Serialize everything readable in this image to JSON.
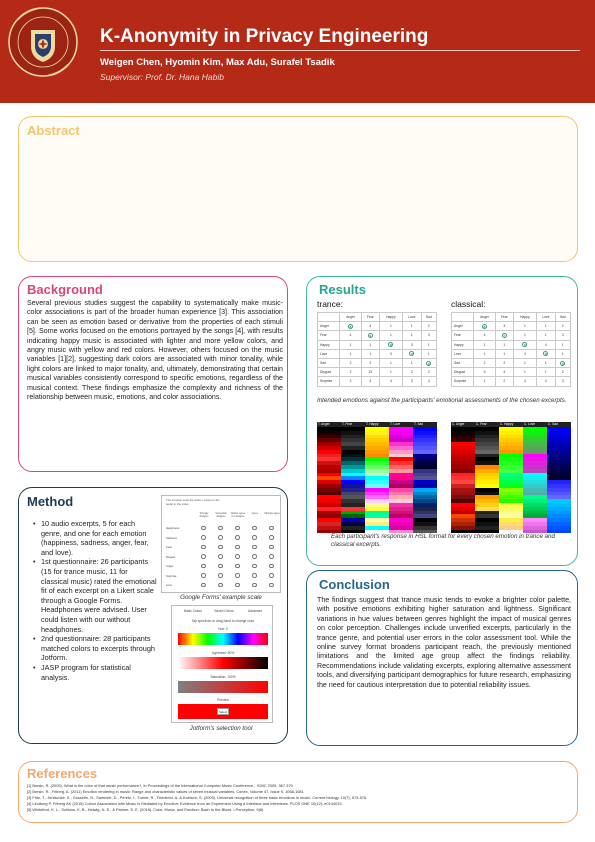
{
  "header": {
    "seal_text": "Kadir Mellon University",
    "title": "K-Anonymity in Privacy Engineering",
    "authors": "Weigen Chen, Hyomin Kim, Max Adu, Surafel Tsadik",
    "supervisor": "Supervisor: Prof. Dr. Hana Habib",
    "colors": {
      "header_bg": "#b52a17"
    }
  },
  "abstract": {
    "title": "Abstract"
  },
  "background": {
    "title": "Background",
    "text": "Several previous studies suggest the capability to systematically make music-color associations is part of the broader human experience [3]. This association can be seen as emotion based or derivative from the properties of each stimuli [5]. Some works focused on the emotions portrayed by the songs [4], with results indicating happy music is associated with lighter and more yellow colors, and angry music with yellow and red colors. However, others focused on the music variables [1][2], suggesting dark colors are associated with minor tonality, while light colors are linked to major tonality, and, ultimately, demonstrating that certain musical variables consistently correspond to specific emotions, regardless of the musical context. These findings emphasize the complexity and richness of the relationship between music, emotions, and color associations."
  },
  "method": {
    "title": "Method",
    "bullets": [
      "10 audio excerpts, 5 for each genre, and one for each emotion (happiness, sadness, anger, fear, and love).",
      "1st questionnaire: 26 participants (15 for trance music, 11 for classical music) rated the emotional fit of each excerpt on a Likert scale through a Google Forms. Headphones were advised. User could listen with our without headphones.",
      "2nd questionnaire: 28 participants matched colors to excerpts through Jotform.",
      "JASP program for statistical analysis."
    ],
    "forms_panel": {
      "prompt": "The emotion suits the audio / Listen to the audio in the video",
      "columns": [
        "Strongly disagree",
        "Somewhat disagree",
        "Neither agree nor disagree",
        "Agree",
        "Strongly agree"
      ],
      "rows": [
        "Happiness",
        "Sadness",
        "Fear",
        "Disgust",
        "Anger",
        "Surprise",
        "Love"
      ],
      "caption": "Google Forms' example scale"
    },
    "jotform_panel": {
      "tabs": [
        "Basic Colors",
        "Saved Colors",
        "Advanced"
      ],
      "instruction": "Tap spectrum or drag band to change color",
      "hue_label": "Hue: 0",
      "lightness_label": "Lightness: 50%",
      "saturation_label": "Saturation: 100%",
      "preview_label": "Preview",
      "select_label": "Select",
      "caption": "Jotform's selection tool"
    }
  },
  "results": {
    "title": "Results",
    "trance_label": "trance:",
    "classical_label": "classical:",
    "table_columns": [
      "",
      "Anger",
      "Fear",
      "Happy",
      "Love",
      "Sad"
    ],
    "trance_rows": [
      {
        "label": "Anger",
        "cells": [
          "8",
          "4",
          "1",
          "1",
          "2"
        ],
        "mark": 0
      },
      {
        "label": "Fear",
        "cells": [
          "4",
          "9",
          "1",
          "1",
          "3"
        ],
        "mark": 1
      },
      {
        "label": "Happy",
        "cells": [
          "1",
          "1",
          "8",
          "3",
          "1"
        ],
        "mark": 2
      },
      {
        "label": "Love",
        "cells": [
          "1",
          "1",
          "3",
          "9",
          "1"
        ],
        "mark": 3
      },
      {
        "label": "Sad",
        "cells": [
          "2",
          "2",
          "1",
          "1",
          "9"
        ],
        "mark": 4
      },
      {
        "label": "Disgust",
        "cells": [
          "2",
          "13",
          "1",
          "2",
          "2"
        ],
        "mark": -1
      },
      {
        "label": "Surprise",
        "cells": [
          "2",
          "4",
          "4",
          "3",
          "4"
        ],
        "mark": -1
      }
    ],
    "classical_rows": [
      {
        "label": "Anger",
        "cells": [
          "8",
          "3",
          "1",
          "1",
          "2"
        ],
        "mark": 0
      },
      {
        "label": "Fear",
        "cells": [
          "4",
          "7",
          "1",
          "1",
          "3"
        ],
        "mark": 1
      },
      {
        "label": "Happy",
        "cells": [
          "1",
          "1",
          "9",
          "4",
          "1"
        ],
        "mark": 2
      },
      {
        "label": "Love",
        "cells": [
          "1",
          "1",
          "4",
          "8",
          "1"
        ],
        "mark": 3
      },
      {
        "label": "Sad",
        "cells": [
          "2",
          "2",
          "1",
          "1",
          "8"
        ],
        "mark": 4
      },
      {
        "label": "Disgust",
        "cells": [
          "3",
          "4",
          "1",
          "1",
          "2"
        ],
        "mark": -1
      },
      {
        "label": "Surprise",
        "cells": [
          "1",
          "2",
          "4",
          "4",
          "3"
        ],
        "mark": -1
      }
    ],
    "caption_tables": "Intended emotions against the participants' emotional assessments of the chosen excerpts.",
    "trance_heat_headers": [
      "T. Anger",
      "T. Fear",
      "T. Happy",
      "T. Love",
      "T. Sad"
    ],
    "classical_heat_headers": [
      "C. Anger",
      "C. Fear",
      "C. Happy",
      "C. Love",
      "C. Sad"
    ],
    "caption_heatmaps": "Each participant's response in HSL format for every chosen emotion in trance and classical excerpts."
  },
  "conclusion": {
    "title": "Conclusion",
    "text": "The findings suggest that trance music tends to evoke a brighter color palette, with positive emotions exhibiting higher saturation and lightness. Significant variations in hue values between genres highlight the impact of musical genres on color perception. Challenges include unverified excerpts, particularly in the trance genre, and potential user errors in the color assessment tool. While the online survey format broadens participant reach, the previously mentioned limitations and the limited age group affect the findings reliability. Recommendations include validating excerpts, exploring alternative assessment tools, and diversifying participant demographics for future research, emphasizing the need for cautious interpretation due to potential reliability issues."
  },
  "references": {
    "title": "References",
    "items": [
      "[1] Bresin, R. (2005). What is the color of that music performance?, In Proceedings of the International Computer Music Conference - ICMC 2005, 367-370",
      "[2] Bresin, R., Friberg, A. (2011) Emotion rendering in music: Range and characteristic values of seven musical variables, Cortex, Volume 47, Issue 9, 1068-1081",
      "[3] Fritz, T., Jentschke, S., Gosselin, N., Sammler, D., Peretz, I., Turner, R., Friederici, A. & Koelsch, S. (2009). Universal recognition of three basic emotions in music. Current biology, 19(7), 573-576.",
      "[4] Lindborg P, Friberg AK (2015) Colour Association with Music Is Mediated by Emotion: Evidence from an Experiment Using a Interface and Interviews. PLOS ONE 10(12): e0144013.",
      "[5] Whiteford, K. L., Schloss, K. B., Helwig, N. E., & Palmer, S. E. (2018). Color, Music, and Emotion: Bach to the Blues. i-Perception, 9(6)."
    ]
  }
}
